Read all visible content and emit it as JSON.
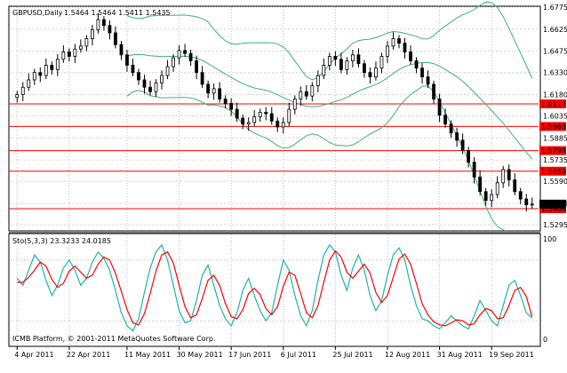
{
  "header": {
    "symbol_info": "GBPUSD,Daily",
    "ohlc": "1.5464 1.5464 1.5411 1.5435"
  },
  "indicator": {
    "label": "Sto(5,3,3) 23.3233 24.0185",
    "level_high": "100",
    "level_low": "0"
  },
  "footer": {
    "copyright": "ICMB Platform, © 2001-2011 MetaQuotes Software Corp."
  },
  "colors": {
    "candle": "#000000",
    "bands": "#3cb371",
    "levels": "#ff0000",
    "stoch_main": "#20b2aa",
    "stoch_signal": "#ff0000",
    "grid": "#c0c0c0"
  },
  "chart_data": [
    {
      "type": "candlestick",
      "title": "GBPUSD,Daily",
      "ylim": [
        1.5265,
        1.6715
      ],
      "grid": true,
      "y_ticks": [
        "1.6775",
        "1.6625",
        "1.6475",
        "1.6330",
        "1.6180",
        "1.6035",
        "1.5885",
        "1.5735",
        "1.5590",
        "1.5440",
        "1.5295"
      ],
      "x_ticks": [
        "4 Apr 2011",
        "22 Apr 2011",
        "11 May 2011",
        "30 May 2011",
        "17 Jun 2011",
        "6 Jul 2011",
        "25 Jul 2011",
        "12 Aug 2011",
        "31 Aug 2011",
        "19 Sep 2011"
      ],
      "horizontal_levels": [
        {
          "value": 1.6117,
          "label": "1.6117"
        },
        {
          "value": 1.5963,
          "label": "1.5963"
        },
        {
          "value": 1.5799,
          "label": "1.5799"
        },
        {
          "value": 1.5659,
          "label": "1.5659"
        },
        {
          "value": 1.5404,
          "label": "1.5404"
        }
      ],
      "current_price": "1.5435",
      "closes": [
        1.618,
        1.623,
        1.628,
        1.633,
        1.631,
        1.638,
        1.635,
        1.642,
        1.647,
        1.644,
        1.649,
        1.651,
        1.656,
        1.662,
        1.669,
        1.665,
        1.66,
        1.652,
        1.645,
        1.638,
        1.633,
        1.628,
        1.623,
        1.62,
        1.626,
        1.631,
        1.637,
        1.643,
        1.648,
        1.646,
        1.641,
        1.633,
        1.625,
        1.619,
        1.622,
        1.615,
        1.612,
        1.608,
        1.602,
        1.598,
        1.599,
        1.603,
        1.606,
        1.605,
        1.6,
        1.596,
        1.599,
        1.608,
        1.615,
        1.62,
        1.617,
        1.624,
        1.631,
        1.638,
        1.644,
        1.642,
        1.635,
        1.641,
        1.645,
        1.639,
        1.633,
        1.63,
        1.636,
        1.644,
        1.651,
        1.656,
        1.653,
        1.647,
        1.641,
        1.636,
        1.63,
        1.625,
        1.615,
        1.604,
        1.598,
        1.592,
        1.587,
        1.58,
        1.572,
        1.562,
        1.552,
        1.546,
        1.55,
        1.558,
        1.567,
        1.56,
        1.552,
        1.547,
        1.543,
        1.5435
      ]
    },
    {
      "type": "line",
      "title": "Sto(5,3,3)",
      "ylim": [
        0,
        100
      ],
      "series": [
        {
          "name": "",
          "values": [
            62,
            55,
            70,
            85,
            78,
            60,
            45,
            55,
            72,
            80,
            70,
            55,
            62,
            78,
            88,
            82,
            70,
            50,
            28,
            15,
            10,
            22,
            48,
            72,
            88,
            95,
            80,
            55,
            30,
            18,
            20,
            40,
            65,
            75,
            55,
            35,
            22,
            15,
            28,
            50,
            62,
            45,
            30,
            20,
            28,
            55,
            80,
            70,
            45,
            25,
            15,
            30,
            60,
            85,
            95,
            88,
            65,
            50,
            72,
            85,
            70,
            45,
            30,
            40,
            65,
            85,
            92,
            80,
            55,
            35,
            22,
            20,
            15,
            12,
            18,
            25,
            20,
            15,
            12,
            25,
            40,
            30,
            20,
            15,
            35,
            55,
            60,
            45,
            28,
            23
          ]
        },
        {
          "name": "",
          "values": [
            58,
            58,
            63,
            70,
            78,
            74,
            61,
            53,
            57,
            69,
            74,
            68,
            62,
            65,
            76,
            83,
            80,
            67,
            49,
            31,
            18,
            16,
            27,
            47,
            69,
            85,
            88,
            77,
            55,
            34,
            23,
            26,
            42,
            60,
            65,
            55,
            37,
            24,
            22,
            31,
            47,
            52,
            46,
            32,
            26,
            34,
            54,
            68,
            65,
            47,
            28,
            23,
            35,
            58,
            80,
            89,
            83,
            68,
            62,
            69,
            76,
            67,
            48,
            38,
            45,
            63,
            81,
            86,
            76,
            57,
            37,
            26,
            19,
            16,
            15,
            18,
            21,
            20,
            16,
            17,
            26,
            32,
            30,
            22,
            23,
            35,
            50,
            53,
            44,
            24
          ]
        }
      ]
    }
  ]
}
